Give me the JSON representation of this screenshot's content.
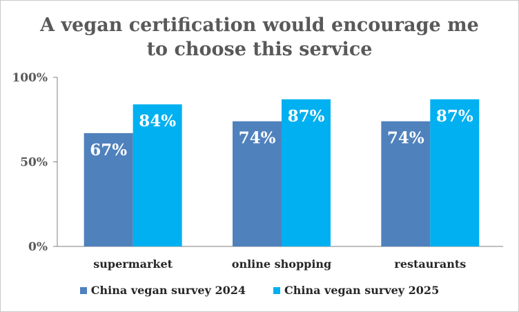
{
  "chart_data": {
    "type": "bar",
    "title_lines": [
      "A vegan certification would encourage me",
      "to choose this service"
    ],
    "categories": [
      "supermarket",
      "online shopping",
      "restaurants"
    ],
    "series": [
      {
        "name": "China vegan survey 2024",
        "values": [
          67,
          74,
          74
        ],
        "labels": [
          "67%",
          "74%",
          "74%"
        ],
        "color": "#4f81bd"
      },
      {
        "name": "China vegan survey 2025",
        "values": [
          84,
          87,
          87
        ],
        "labels": [
          "84%",
          "87%",
          "87%"
        ],
        "color": "#00b0f0"
      }
    ],
    "ylim": [
      0,
      100
    ],
    "yticks": [
      0,
      50,
      100
    ],
    "ytick_labels": [
      "0%",
      "50%",
      "100%"
    ],
    "grid": false,
    "legend_position": "bottom"
  }
}
